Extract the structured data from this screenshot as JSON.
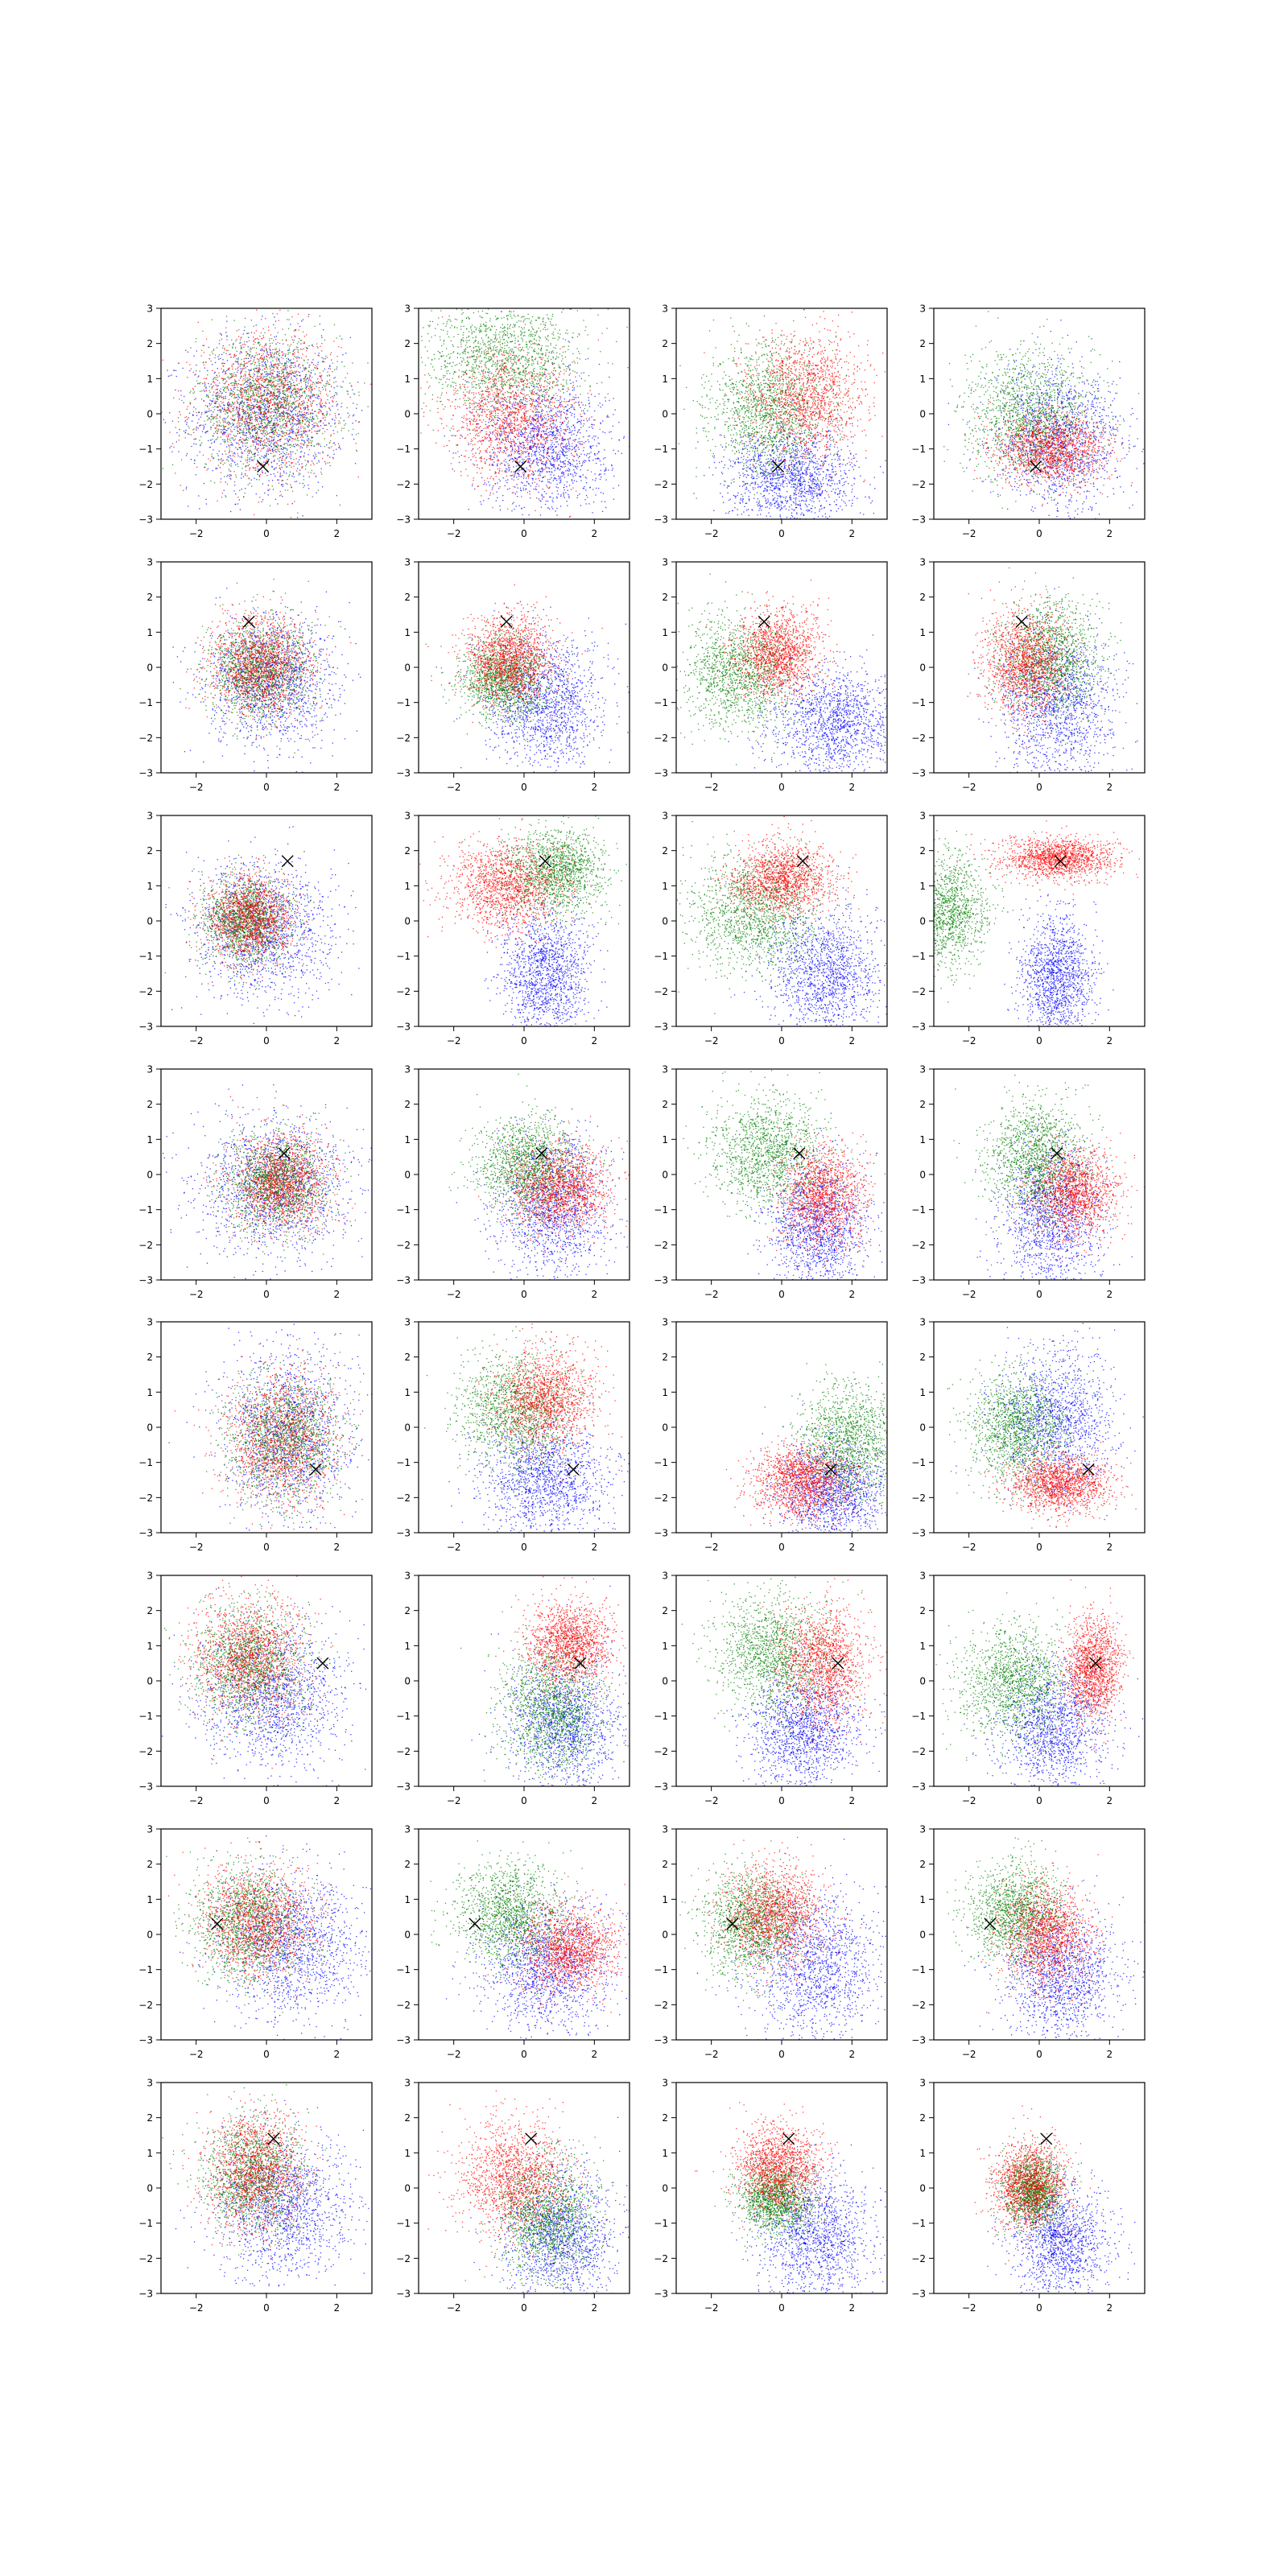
{
  "figure": {
    "layout": "8 rows x 4 columns of scatter panels"
  },
  "chart_data": {
    "type": "scatter",
    "grid": false,
    "xlim": [
      -3,
      3
    ],
    "ylim": [
      -3,
      3
    ],
    "xticks": [
      -2,
      0,
      2
    ],
    "yticks": [
      -3,
      -2,
      -1,
      0,
      1,
      2,
      3
    ],
    "colors": {
      "red": "#ff0000",
      "green": "#008000",
      "blue": "#0000ff",
      "marker": "#000000"
    },
    "marker_symbol": "×",
    "rows": [
      {
        "marker": [
          -0.1,
          -1.5
        ],
        "panels": [
          {
            "red": [
              0,
              0.3,
              1.0,
              1.0
            ],
            "green": [
              0,
              0.3,
              1.0,
              1.0
            ],
            "blue": [
              0,
              0,
              1.1,
              1.1
            ]
          },
          {
            "red": [
              -0.4,
              -0.1,
              0.9,
              0.9
            ],
            "green": [
              -0.5,
              1.6,
              1.1,
              0.8
            ],
            "blue": [
              0.6,
              -0.9,
              0.9,
              0.9
            ]
          },
          {
            "red": [
              0.7,
              0.5,
              0.8,
              0.9
            ],
            "green": [
              -0.4,
              0.1,
              0.8,
              0.9
            ],
            "blue": [
              0.3,
              -1.8,
              0.9,
              0.7
            ]
          },
          {
            "red": [
              0.3,
              -1.0,
              0.8,
              0.5
            ],
            "green": [
              -0.3,
              0.0,
              0.9,
              0.9
            ],
            "blue": [
              0.6,
              -0.7,
              0.9,
              1.0
            ]
          }
        ]
      },
      {
        "marker": [
          -0.5,
          1.3
        ],
        "panels": [
          {
            "red": [
              -0.2,
              0.1,
              0.7,
              0.7
            ],
            "green": [
              -0.2,
              -0.1,
              0.7,
              0.7
            ],
            "blue": [
              0.1,
              -0.4,
              0.9,
              0.9
            ]
          },
          {
            "red": [
              -0.4,
              0.2,
              0.6,
              0.6
            ],
            "green": [
              -0.6,
              -0.3,
              0.6,
              0.6
            ],
            "blue": [
              0.6,
              -1.0,
              0.8,
              0.9
            ]
          },
          {
            "red": [
              -0.1,
              0.4,
              0.6,
              0.6
            ],
            "green": [
              -1.2,
              -0.1,
              0.8,
              0.8
            ],
            "blue": [
              1.5,
              -1.6,
              0.9,
              0.8
            ]
          },
          {
            "red": [
              -0.4,
              0.1,
              0.6,
              0.7
            ],
            "green": [
              0.3,
              0.3,
              0.7,
              0.8
            ],
            "blue": [
              0.5,
              -1.0,
              0.8,
              1.0
            ]
          }
        ]
      },
      {
        "marker": [
          0.6,
          1.7
        ],
        "panels": [
          {
            "red": [
              -0.5,
              0.1,
              0.6,
              0.6
            ],
            "green": [
              -0.6,
              0.0,
              0.6,
              0.6
            ],
            "blue": [
              -0.1,
              -0.3,
              1.0,
              1.0
            ]
          },
          {
            "red": [
              -0.5,
              1.0,
              0.8,
              0.6
            ],
            "green": [
              0.9,
              1.4,
              0.7,
              0.6
            ],
            "blue": [
              0.6,
              -1.5,
              0.6,
              0.9
            ]
          },
          {
            "red": [
              0.0,
              1.2,
              0.7,
              0.5
            ],
            "green": [
              -0.8,
              0.2,
              0.9,
              0.8
            ],
            "blue": [
              1.2,
              -1.5,
              0.8,
              0.9
            ]
          },
          {
            "red": [
              0.5,
              1.8,
              0.8,
              0.3
            ],
            "green": [
              -2.7,
              0.3,
              0.6,
              0.8
            ],
            "blue": [
              0.5,
              -1.6,
              0.5,
              0.9
            ]
          }
        ]
      },
      {
        "marker": [
          0.5,
          0.6
        ],
        "panels": [
          {
            "red": [
              0.4,
              -0.2,
              0.7,
              0.7
            ],
            "green": [
              0.3,
              -0.2,
              0.7,
              0.7
            ],
            "blue": [
              0.2,
              -0.3,
              1.1,
              1.0
            ]
          },
          {
            "red": [
              1.0,
              -0.4,
              0.7,
              0.6
            ],
            "green": [
              0.1,
              0.3,
              0.7,
              0.7
            ],
            "blue": [
              0.8,
              -0.9,
              0.8,
              1.0
            ]
          },
          {
            "red": [
              1.2,
              -0.6,
              0.6,
              0.7
            ],
            "green": [
              -0.4,
              0.6,
              0.8,
              0.8
            ],
            "blue": [
              1.0,
              -1.5,
              0.7,
              0.9
            ]
          },
          {
            "red": [
              1.0,
              -0.5,
              0.6,
              0.6
            ],
            "green": [
              -0.1,
              0.5,
              0.7,
              0.8
            ],
            "blue": [
              0.3,
              -1.2,
              0.7,
              1.0
            ]
          }
        ]
      },
      {
        "marker": [
          1.4,
          -1.2
        ],
        "panels": [
          {
            "red": [
              0.4,
              -0.3,
              0.8,
              0.9
            ],
            "green": [
              0.5,
              -0.3,
              0.8,
              0.9
            ],
            "blue": [
              0.6,
              -0.1,
              0.9,
              1.2
            ]
          },
          {
            "red": [
              0.6,
              0.8,
              0.7,
              0.7
            ],
            "green": [
              -0.3,
              0.5,
              0.8,
              0.8
            ],
            "blue": [
              0.6,
              -1.5,
              0.9,
              0.8
            ]
          },
          {
            "red": [
              0.6,
              -1.5,
              0.7,
              0.5
            ],
            "green": [
              1.9,
              -0.4,
              0.7,
              0.8
            ],
            "blue": [
              1.4,
              -1.8,
              0.8,
              0.7
            ]
          },
          {
            "red": [
              0.6,
              -1.6,
              0.7,
              0.4
            ],
            "green": [
              -0.6,
              0.0,
              0.7,
              0.8
            ],
            "blue": [
              0.5,
              0.2,
              0.8,
              1.0
            ]
          }
        ]
      },
      {
        "marker": [
          1.6,
          0.5
        ],
        "panels": [
          {
            "red": [
              -0.5,
              0.7,
              0.8,
              0.8
            ],
            "green": [
              -0.5,
              0.5,
              0.8,
              0.8
            ],
            "blue": [
              0.2,
              -0.4,
              1.0,
              1.0
            ]
          },
          {
            "red": [
              1.3,
              1.1,
              0.6,
              0.6
            ],
            "green": [
              0.8,
              -0.8,
              0.7,
              0.9
            ],
            "blue": [
              1.2,
              -1.2,
              0.8,
              1.0
            ]
          },
          {
            "red": [
              1.2,
              0.5,
              0.6,
              0.8
            ],
            "green": [
              -0.3,
              0.8,
              0.8,
              0.8
            ],
            "blue": [
              0.6,
              -1.4,
              0.8,
              0.8
            ]
          },
          {
            "red": [
              1.5,
              0.4,
              0.4,
              0.7
            ],
            "green": [
              -0.7,
              0.0,
              0.8,
              0.8
            ],
            "blue": [
              0.4,
              -1.3,
              0.8,
              0.9
            ]
          }
        ]
      },
      {
        "marker": [
          -1.4,
          0.3
        ],
        "panels": [
          {
            "red": [
              -0.3,
              0.4,
              0.8,
              0.8
            ],
            "green": [
              -0.5,
              0.3,
              0.8,
              0.8
            ],
            "blue": [
              0.8,
              -0.3,
              1.0,
              1.0
            ]
          },
          {
            "red": [
              1.3,
              -0.4,
              0.7,
              0.6
            ],
            "green": [
              -0.4,
              0.6,
              0.8,
              0.7
            ],
            "blue": [
              0.6,
              -0.9,
              0.9,
              0.9
            ]
          },
          {
            "red": [
              -0.2,
              0.6,
              0.7,
              0.7
            ],
            "green": [
              -0.9,
              0.3,
              0.7,
              0.7
            ],
            "blue": [
              1.0,
              -0.9,
              0.9,
              1.0
            ]
          },
          {
            "red": [
              0.2,
              0.0,
              0.6,
              0.7
            ],
            "green": [
              -0.7,
              0.6,
              0.7,
              0.7
            ],
            "blue": [
              0.6,
              -1.2,
              0.8,
              0.9
            ]
          }
        ]
      },
      {
        "marker": [
          0.2,
          1.4
        ],
        "panels": [
          {
            "red": [
              -0.3,
              0.5,
              0.7,
              0.8
            ],
            "green": [
              -0.4,
              0.4,
              0.7,
              0.8
            ],
            "blue": [
              0.5,
              -0.6,
              1.0,
              1.0
            ]
          },
          {
            "red": [
              -0.3,
              0.3,
              0.8,
              0.8
            ],
            "green": [
              0.6,
              -0.8,
              0.7,
              0.8
            ],
            "blue": [
              1.0,
              -1.4,
              0.8,
              0.9
            ]
          },
          {
            "red": [
              -0.1,
              0.6,
              0.6,
              0.6
            ],
            "green": [
              -0.2,
              -0.3,
              0.5,
              0.5
            ],
            "blue": [
              1.0,
              -1.4,
              0.8,
              0.9
            ]
          },
          {
            "red": [
              -0.3,
              0.1,
              0.5,
              0.6
            ],
            "green": [
              -0.2,
              -0.1,
              0.4,
              0.5
            ],
            "blue": [
              0.6,
              -1.5,
              0.7,
              0.8
            ]
          }
        ]
      }
    ]
  }
}
